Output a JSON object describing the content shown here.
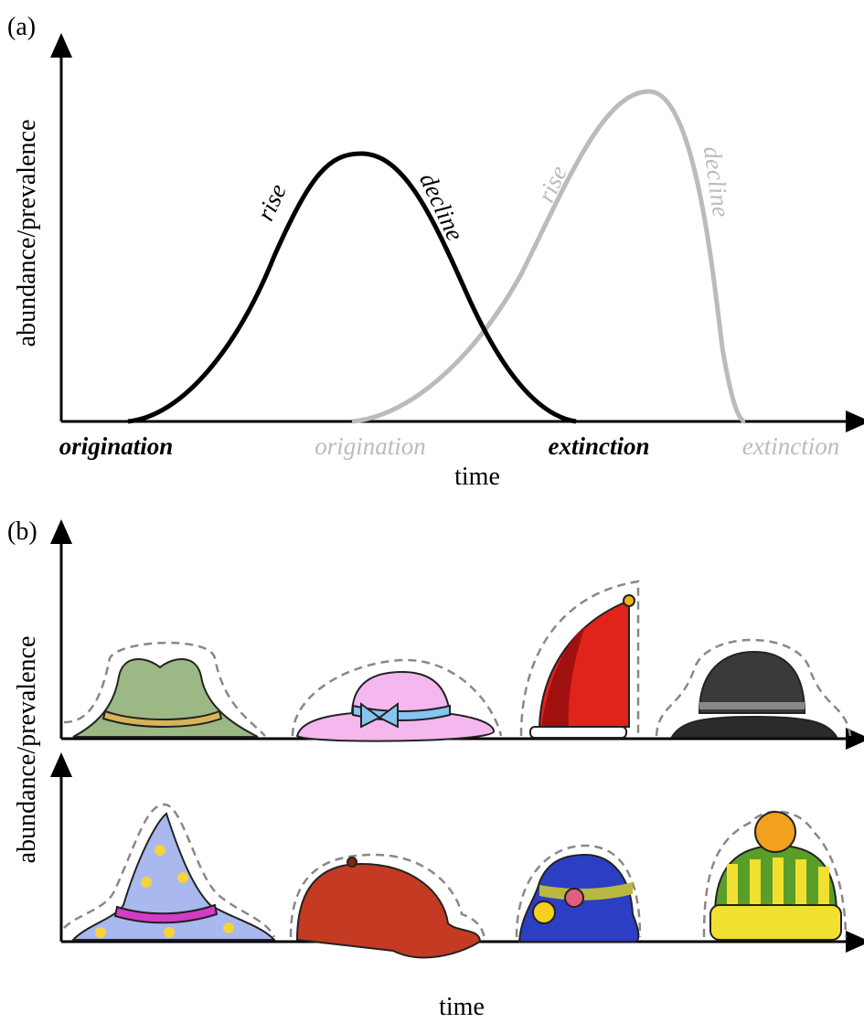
{
  "panel_a": {
    "label": "(a)",
    "y_label": "abundance/prevalence",
    "x_label": "time",
    "curve_1": {
      "rise": "rise",
      "decline": "decline",
      "origination": "origination",
      "extinction": "extinction"
    },
    "curve_2": {
      "rise": "rise",
      "decline": "decline",
      "origination": "origination",
      "extinction": "extinction"
    }
  },
  "panel_b": {
    "label": "(b)",
    "y_label": "abundance/prevalence",
    "x_label": "time"
  }
}
